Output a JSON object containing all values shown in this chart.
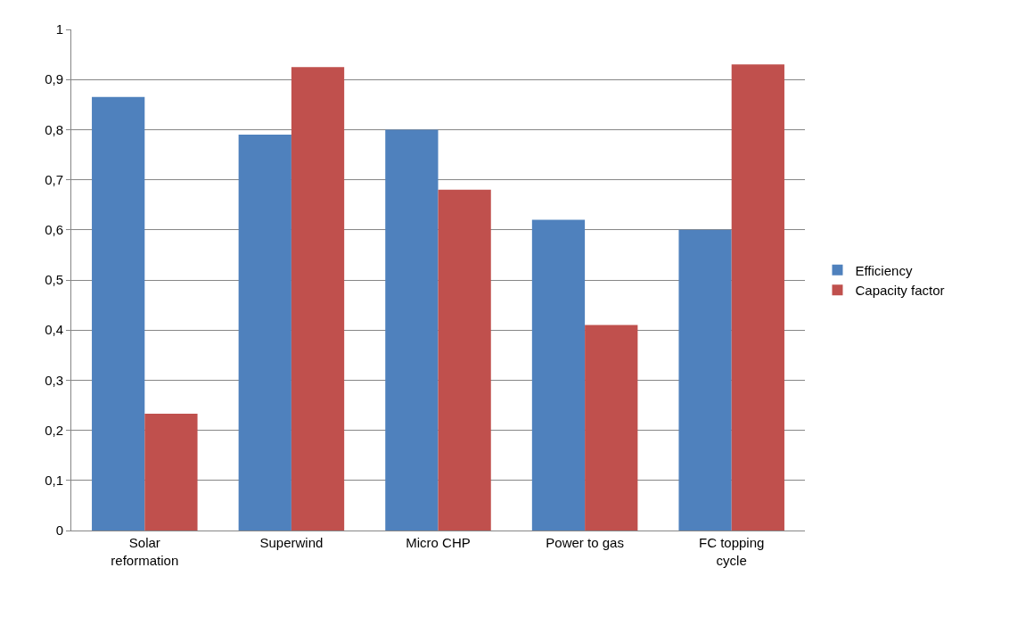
{
  "chart_data": {
    "type": "bar",
    "categories": [
      "Solar\nreformation",
      "Superwind",
      "Micro CHP",
      "Power to gas",
      "FC topping\ncycle"
    ],
    "series": [
      {
        "name": "Efficiency",
        "color": "#4f81bd",
        "values": [
          0.865,
          0.79,
          0.8,
          0.62,
          0.6
        ]
      },
      {
        "name": "Capacity factor",
        "color": "#c0504d",
        "values": [
          0.233,
          0.925,
          0.68,
          0.41,
          0.93
        ]
      }
    ],
    "ylim": [
      0,
      1
    ],
    "yticks": [
      0,
      {
        "value": 0.1,
        "label": "0,1"
      },
      {
        "value": 0.2,
        "label": "0,2"
      },
      {
        "value": 0.3,
        "label": "0,3"
      },
      {
        "value": 0.4,
        "label": "0,4"
      },
      {
        "value": 0.5,
        "label": "0,5"
      },
      {
        "value": 0.6,
        "label": "0,6"
      },
      {
        "value": 0.7,
        "label": "0,7"
      },
      {
        "value": 0.8,
        "label": "0,8"
      },
      {
        "value": 0.9,
        "label": "0,9"
      },
      1
    ],
    "grid": "y",
    "legend": "right"
  }
}
